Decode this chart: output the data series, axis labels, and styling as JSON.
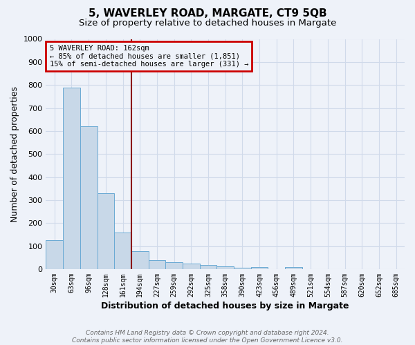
{
  "title": "5, WAVERLEY ROAD, MARGATE, CT9 5QB",
  "subtitle": "Size of property relative to detached houses in Margate",
  "xlabel": "Distribution of detached houses by size in Margate",
  "ylabel": "Number of detached properties",
  "categories": [
    "30sqm",
    "63sqm",
    "96sqm",
    "128sqm",
    "161sqm",
    "194sqm",
    "227sqm",
    "259sqm",
    "292sqm",
    "325sqm",
    "358sqm",
    "390sqm",
    "423sqm",
    "456sqm",
    "489sqm",
    "521sqm",
    "554sqm",
    "587sqm",
    "620sqm",
    "652sqm",
    "685sqm"
  ],
  "values": [
    125,
    790,
    620,
    330,
    160,
    77,
    40,
    30,
    23,
    18,
    13,
    7,
    10,
    0,
    10,
    0,
    0,
    0,
    0,
    0,
    0
  ],
  "bar_color": "#c8d8e8",
  "bar_edge_color": "#6aaad4",
  "grid_color": "#d0daea",
  "background_color": "#eef2f9",
  "property_line_color": "#8b0000",
  "annotation_text": "5 WAVERLEY ROAD: 162sqm\n← 85% of detached houses are smaller (1,851)\n15% of semi-detached houses are larger (331) →",
  "annotation_box_edge_color": "#cc0000",
  "footer_line1": "Contains HM Land Registry data © Crown copyright and database right 2024.",
  "footer_line2": "Contains public sector information licensed under the Open Government Licence v3.0.",
  "ylim": [
    0,
    1000
  ],
  "yticks": [
    0,
    100,
    200,
    300,
    400,
    500,
    600,
    700,
    800,
    900,
    1000
  ]
}
